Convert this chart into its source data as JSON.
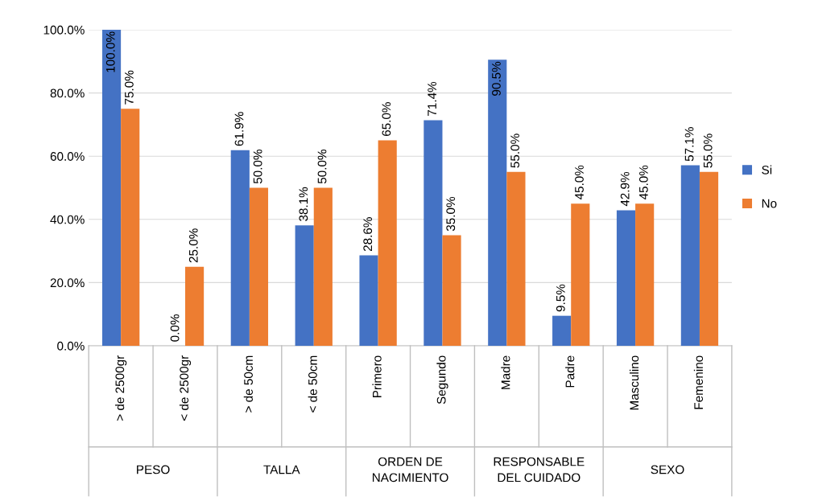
{
  "chart_data": {
    "type": "bar",
    "categories": [
      "> de 2500gr",
      "< de 2500gr",
      "> de 50cm",
      "< de 50cm",
      "Primero",
      "Segundo",
      "Madre",
      "Padre",
      "Masculino",
      "Femenino"
    ],
    "series": [
      {
        "name": "Si",
        "color": "#4472c4",
        "values": [
          100.0,
          0.0,
          61.9,
          38.1,
          28.6,
          71.4,
          90.5,
          9.5,
          42.9,
          57.1
        ],
        "value_labels": [
          "100.0%",
          "0.0%",
          "61.9%",
          "38.1%",
          "28.6%",
          "71.4%",
          "90.5%",
          "9.5%",
          "42.9%",
          "57.1%"
        ]
      },
      {
        "name": "No",
        "color": "#ed7d31",
        "values": [
          75.0,
          25.0,
          50.0,
          50.0,
          65.0,
          35.0,
          55.0,
          45.0,
          45.0,
          55.0
        ],
        "value_labels": [
          "75.0%",
          "25.0%",
          "50.0%",
          "50.0%",
          "65.0%",
          "35.0%",
          "55.0%",
          "45.0%",
          "45.0%",
          "55.0%"
        ]
      }
    ],
    "annotations": [
      "PESO",
      "TALLA",
      "ORDEN DE\nNACIMIENTO",
      "RESPONSABLE\nDEL CUIDADO",
      "SEXO"
    ],
    "ylim": [
      0,
      100
    ],
    "yticks": [
      {
        "value": 0,
        "label": "0.0%"
      },
      {
        "value": 20,
        "label": "20.0%"
      },
      {
        "value": 40,
        "label": "40.0%"
      },
      {
        "value": 60,
        "label": "60.0%"
      },
      {
        "value": 80,
        "label": "80.0%"
      },
      {
        "value": 100,
        "label": "100.0%"
      }
    ],
    "grid": "y",
    "legend": "right"
  }
}
